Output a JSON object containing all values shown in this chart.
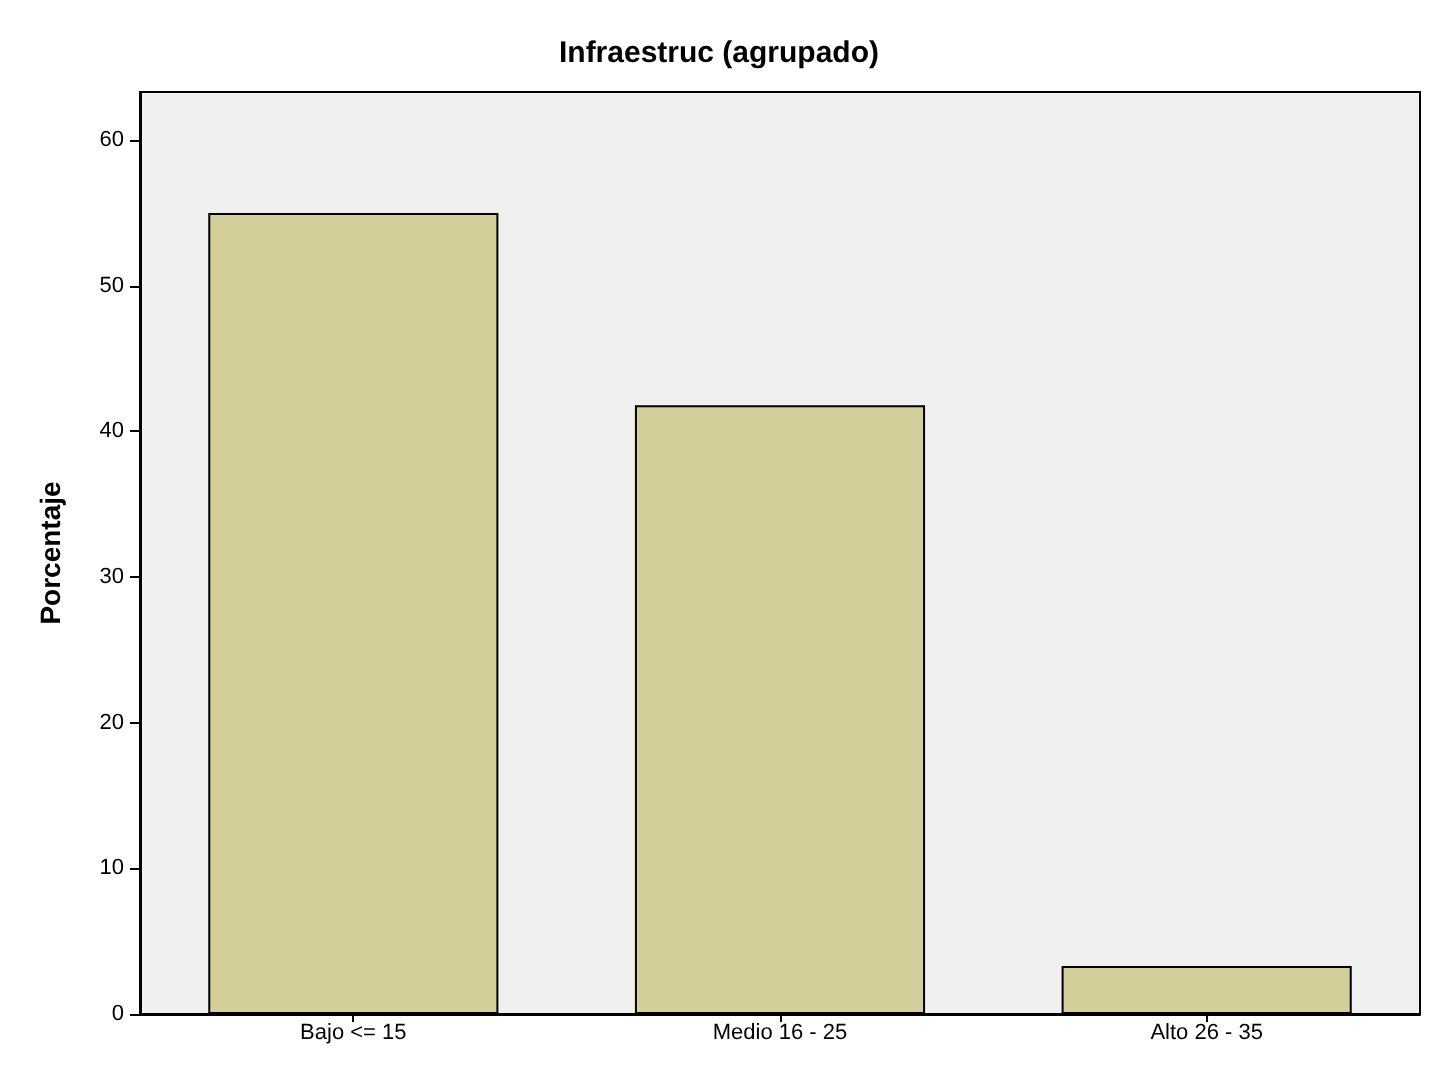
{
  "chart_data": {
    "type": "bar",
    "title": "Infraestruc (agrupado)",
    "ylabel": "Porcentaje",
    "categories": [
      "Bajo <= 15",
      "Medio 16 - 25",
      "Alto 26 - 35"
    ],
    "values": [
      55.0,
      41.8,
      3.3
    ],
    "color": "#d3ce9a",
    "ylim": [
      0,
      63.3
    ],
    "yticks": [
      0,
      10,
      20,
      30,
      40,
      50,
      60
    ],
    "grid": false
  }
}
